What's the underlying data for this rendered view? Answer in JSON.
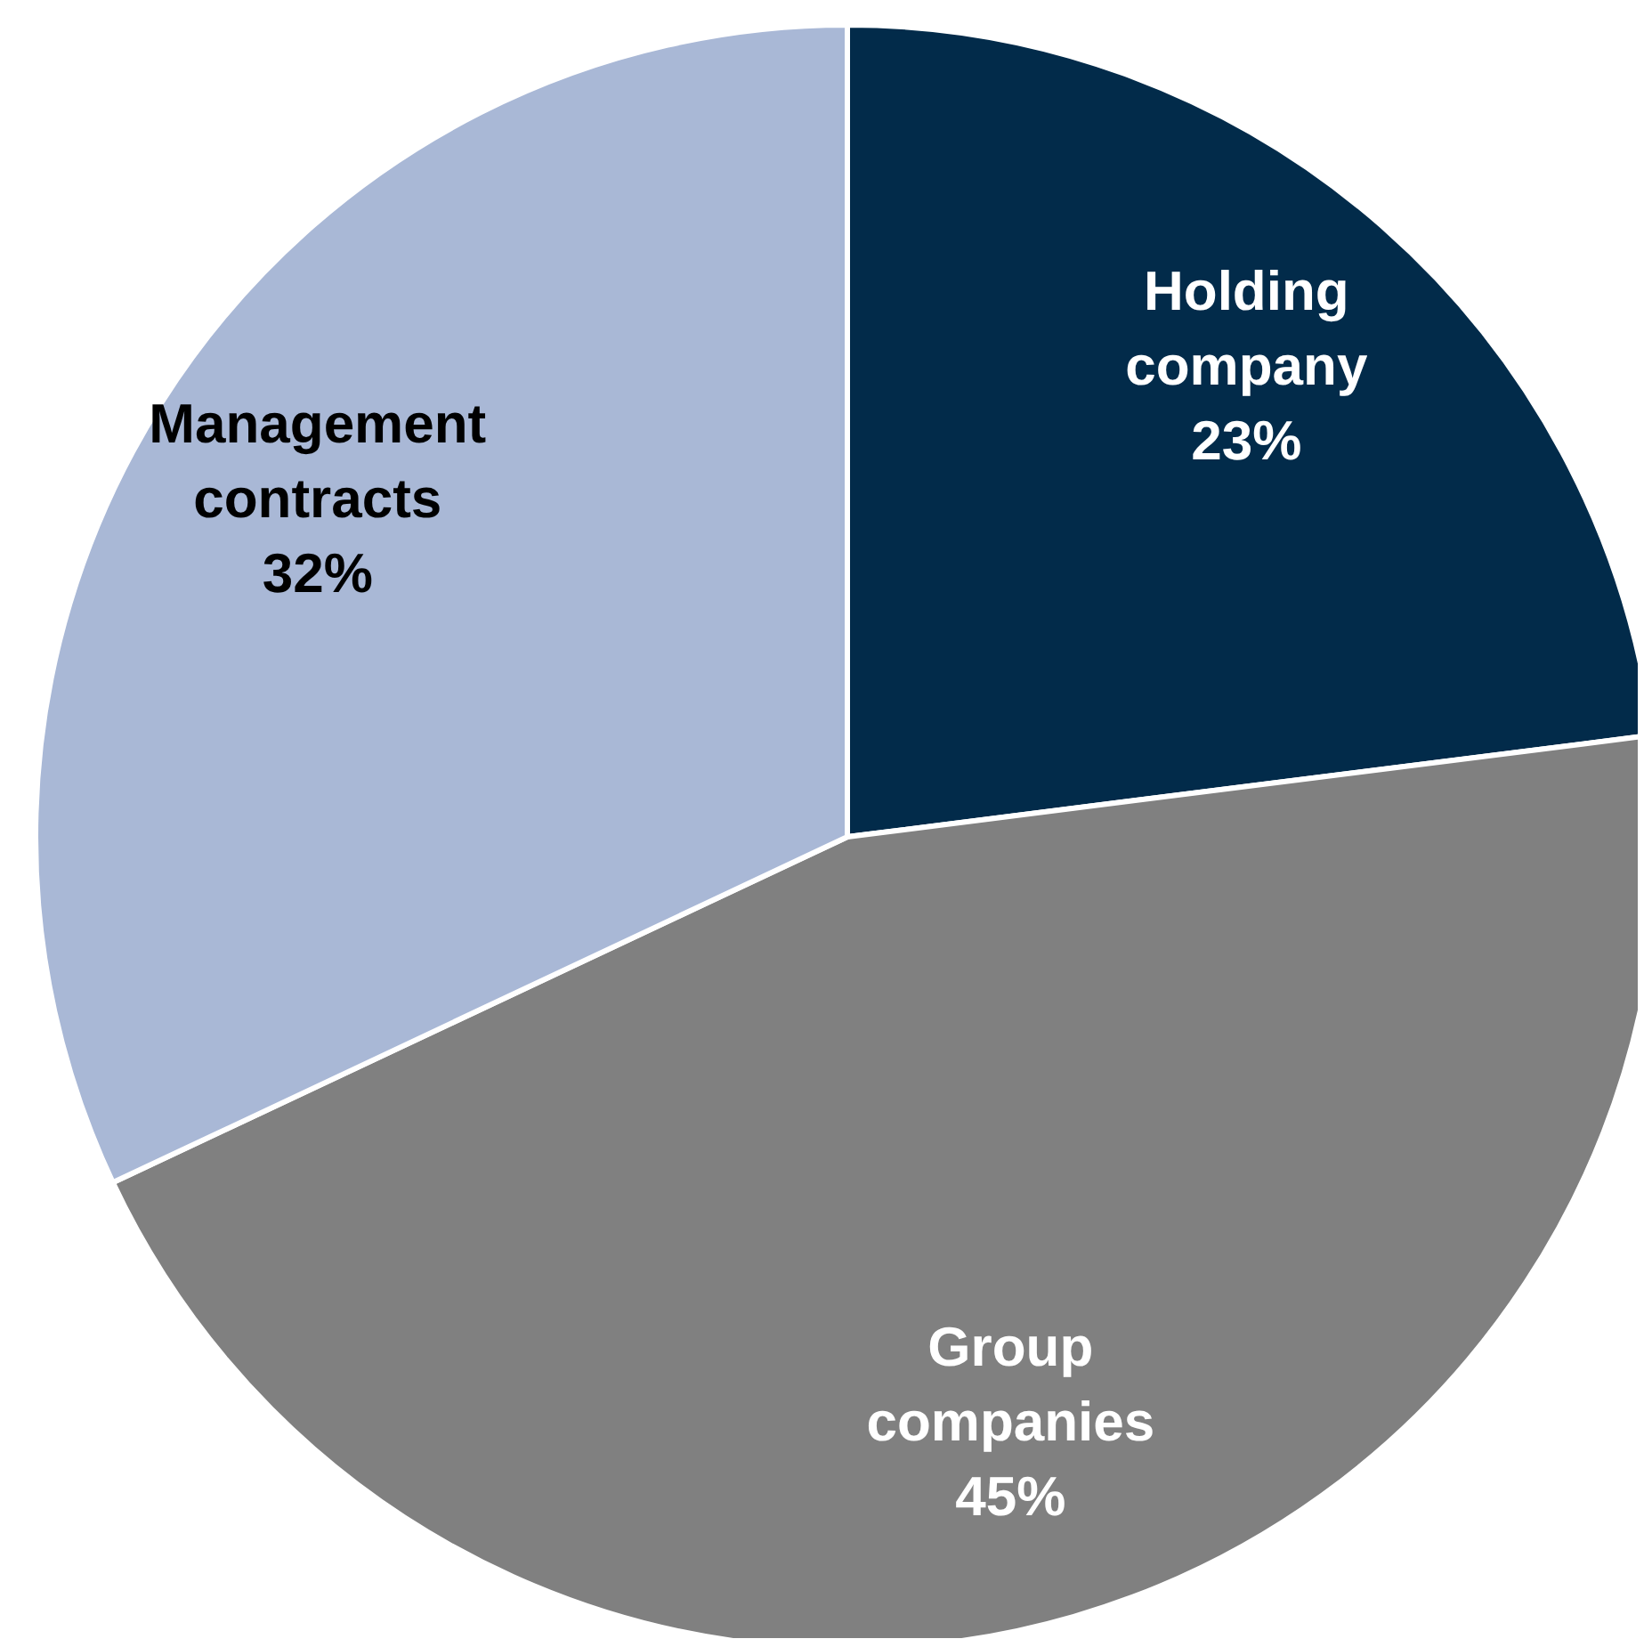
{
  "chart_data": {
    "type": "pie",
    "categories": [
      "Holding company",
      "Group companies",
      "Management contracts"
    ],
    "values": [
      23,
      45,
      32
    ],
    "colors": [
      "#022b4a",
      "#808080",
      "#a9b8d6"
    ],
    "value_labels": [
      "23%",
      "45%",
      "32%"
    ]
  }
}
